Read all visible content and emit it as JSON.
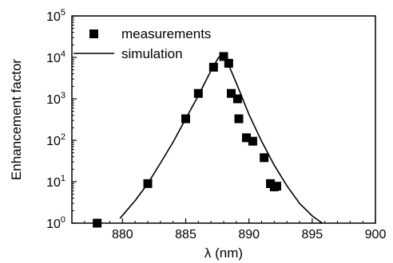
{
  "chart_data": {
    "type": "scatter",
    "title": "",
    "xlabel": "λ (nm)",
    "ylabel": "Enhancement factor",
    "xlim": [
      876,
      900
    ],
    "ylim": [
      1,
      100000
    ],
    "yscale": "log",
    "x_ticks": [
      880,
      885,
      890,
      895,
      900
    ],
    "y_ticks": [
      {
        "value": 1,
        "base": "10",
        "exp": "0"
      },
      {
        "value": 10,
        "base": "10",
        "exp": "1"
      },
      {
        "value": 100,
        "base": "10",
        "exp": "2"
      },
      {
        "value": 1000,
        "base": "10",
        "exp": "3"
      },
      {
        "value": 10000,
        "base": "10",
        "exp": "4"
      },
      {
        "value": 100000,
        "base": "10",
        "exp": "5"
      }
    ],
    "grid": false,
    "legend_position": "top-left",
    "series": [
      {
        "name": "measurements",
        "kind": "markers",
        "marker": "square",
        "color": "#000000",
        "points": [
          {
            "x": 878.0,
            "y": 1.0
          },
          {
            "x": 882.0,
            "y": 9.0
          },
          {
            "x": 885.0,
            "y": 330
          },
          {
            "x": 886.0,
            "y": 1350
          },
          {
            "x": 887.2,
            "y": 5800
          },
          {
            "x": 888.0,
            "y": 10500
          },
          {
            "x": 888.4,
            "y": 7200
          },
          {
            "x": 888.6,
            "y": 1350
          },
          {
            "x": 889.1,
            "y": 1000
          },
          {
            "x": 889.2,
            "y": 330
          },
          {
            "x": 889.8,
            "y": 115
          },
          {
            "x": 890.3,
            "y": 95
          },
          {
            "x": 891.2,
            "y": 38
          },
          {
            "x": 891.7,
            "y": 9.0
          },
          {
            "x": 892.0,
            "y": 7.5
          },
          {
            "x": 892.2,
            "y": 7.8
          }
        ]
      },
      {
        "name": "simulation",
        "kind": "line",
        "color": "#000000",
        "points": [
          {
            "x": 879.8,
            "y": 1.3
          },
          {
            "x": 881.0,
            "y": 3.5
          },
          {
            "x": 882.0,
            "y": 9
          },
          {
            "x": 883.0,
            "y": 28
          },
          {
            "x": 884.0,
            "y": 90
          },
          {
            "x": 885.0,
            "y": 330
          },
          {
            "x": 886.0,
            "y": 1200
          },
          {
            "x": 887.0,
            "y": 4800
          },
          {
            "x": 887.6,
            "y": 10000
          },
          {
            "x": 888.0,
            "y": 11500
          },
          {
            "x": 888.4,
            "y": 6500
          },
          {
            "x": 889.0,
            "y": 2400
          },
          {
            "x": 890.0,
            "y": 420
          },
          {
            "x": 891.0,
            "y": 95
          },
          {
            "x": 892.0,
            "y": 25
          },
          {
            "x": 893.0,
            "y": 8
          },
          {
            "x": 894.0,
            "y": 3
          },
          {
            "x": 895.0,
            "y": 1.5
          },
          {
            "x": 896.0,
            "y": 0.9
          }
        ]
      }
    ]
  }
}
